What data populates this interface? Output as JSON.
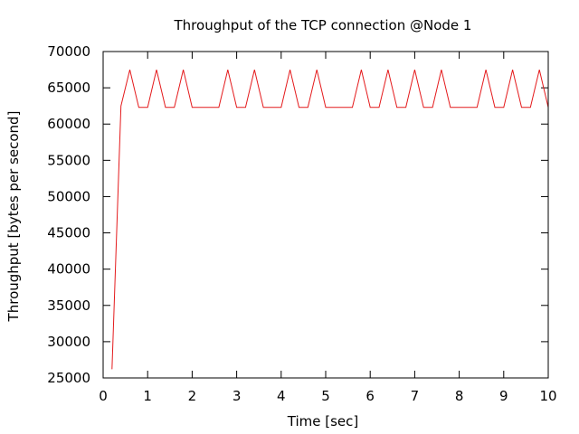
{
  "chart_data": {
    "type": "line",
    "title": "Throughput of the TCP connection @Node 1",
    "xlabel": "Time [sec]",
    "ylabel": "Throughput [bytes per second]",
    "xlim": [
      0,
      10
    ],
    "ylim": [
      25000,
      70000
    ],
    "x_ticks": [
      0,
      1,
      2,
      3,
      4,
      5,
      6,
      7,
      8,
      9,
      10
    ],
    "y_ticks": [
      25000,
      30000,
      35000,
      40000,
      45000,
      50000,
      55000,
      60000,
      65000,
      70000
    ],
    "x_tick_labels": [
      "0",
      "1",
      "2",
      "3",
      "4",
      "5",
      "6",
      "7",
      "8",
      "9",
      "10"
    ],
    "y_tick_labels": [
      "25000",
      "30000",
      "35000",
      "40000",
      "45000",
      "50000",
      "55000",
      "60000",
      "65000",
      "70000"
    ],
    "grid": false,
    "legend": "none",
    "series": [
      {
        "color": "#e41a1c",
        "x": [
          0.2,
          0.4,
          0.6,
          0.8,
          1.0,
          1.2,
          1.4,
          1.6,
          1.8,
          2.0,
          2.2,
          2.4,
          2.6,
          2.8,
          3.0,
          3.2,
          3.4,
          3.6,
          3.8,
          4.0,
          4.2,
          4.4,
          4.6,
          4.8,
          5.0,
          5.2,
          5.4,
          5.6,
          5.8,
          6.0,
          6.2,
          6.4,
          6.6,
          6.8,
          7.0,
          7.2,
          7.4,
          7.6,
          7.8,
          8.0,
          8.2,
          8.4,
          8.6,
          8.8,
          9.0,
          9.2,
          9.4,
          9.6,
          9.8,
          10.0
        ],
        "y": [
          26200,
          62500,
          67500,
          62300,
          62300,
          67500,
          62300,
          62300,
          67500,
          62300,
          62300,
          62300,
          62300,
          67500,
          62300,
          62300,
          67500,
          62300,
          62300,
          62300,
          67500,
          62300,
          62300,
          67500,
          62300,
          62300,
          62300,
          62300,
          67500,
          62300,
          62300,
          67500,
          62300,
          62300,
          67500,
          62300,
          62300,
          67500,
          62300,
          62300,
          62300,
          62300,
          67500,
          62300,
          62300,
          67500,
          62300,
          62300,
          67500,
          62300
        ]
      }
    ]
  }
}
